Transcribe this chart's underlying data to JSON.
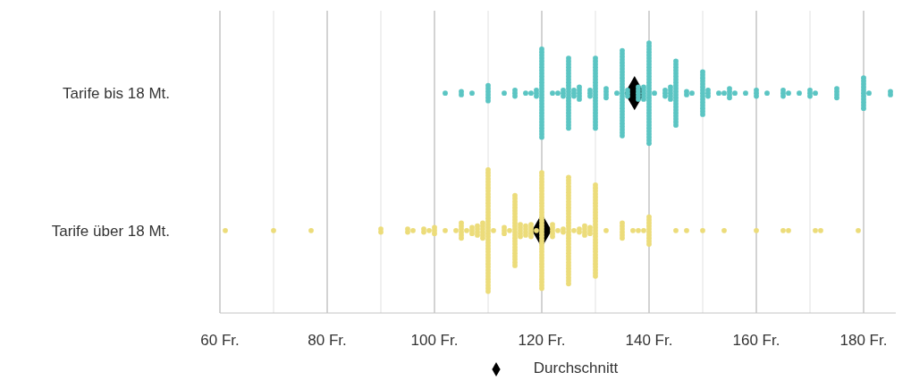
{
  "chart_data": {
    "type": "scatter",
    "orientation": "horizontal",
    "categories": [
      "Tarife bis 18 Mt.",
      "Tarife über 18 Mt."
    ],
    "xlim": [
      60,
      186
    ],
    "xticks": [
      {
        "value": 60,
        "label": "60 Fr."
      },
      {
        "value": 70,
        "label": null
      },
      {
        "value": 80,
        "label": "80 Fr."
      },
      {
        "value": 90,
        "label": null
      },
      {
        "value": 100,
        "label": "100 Fr."
      },
      {
        "value": 110,
        "label": null
      },
      {
        "value": 120,
        "label": "120 Fr."
      },
      {
        "value": 130,
        "label": null
      },
      {
        "value": 140,
        "label": "140 Fr."
      },
      {
        "value": 150,
        "label": null
      },
      {
        "value": 160,
        "label": "160 Fr."
      },
      {
        "value": 170,
        "label": null
      },
      {
        "value": 180,
        "label": "180 Fr."
      }
    ],
    "grid": "x",
    "legend": "bottom",
    "series": [
      {
        "color": "#5bc5c3",
        "marker": "circle",
        "x": [
          "Tarife bis 18 Mt.",
          "Tarife bis 18 Mt.",
          "Tarife bis 18 Mt.",
          "Tarife bis 18 Mt.",
          "Tarife bis 18 Mt.",
          "Tarife bis 18 Mt.",
          "Tarife bis 18 Mt.",
          "Tarife bis 18 Mt.",
          "Tarife bis 18 Mt.",
          "Tarife bis 18 Mt.",
          "Tarife bis 18 Mt.",
          "Tarife bis 18 Mt.",
          "Tarife bis 18 Mt.",
          "Tarife bis 18 Mt.",
          "Tarife bis 18 Mt.",
          "Tarife bis 18 Mt.",
          "Tarife bis 18 Mt.",
          "Tarife bis 18 Mt.",
          "Tarife bis 18 Mt.",
          "Tarife bis 18 Mt.",
          "Tarife bis 18 Mt.",
          "Tarife bis 18 Mt.",
          "Tarife bis 18 Mt.",
          "Tarife bis 18 Mt.",
          "Tarife bis 18 Mt.",
          "Tarife bis 18 Mt.",
          "Tarife bis 18 Mt.",
          "Tarife bis 18 Mt.",
          "Tarife bis 18 Mt.",
          "Tarife bis 18 Mt.",
          "Tarife bis 18 Mt.",
          "Tarife bis 18 Mt.",
          "Tarife bis 18 Mt.",
          "Tarife bis 18 Mt.",
          "Tarife bis 18 Mt.",
          "Tarife bis 18 Mt.",
          "Tarife bis 18 Mt.",
          "Tarife bis 18 Mt.",
          "Tarife bis 18 Mt.",
          "Tarife bis 18 Mt.",
          "Tarife bis 18 Mt.",
          "Tarife bis 18 Mt.",
          "Tarife bis 18 Mt.",
          "Tarife bis 18 Mt.",
          "Tarife bis 18 Mt.",
          "Tarife bis 18 Mt.",
          "Tarife bis 18 Mt.",
          "Tarife bis 18 Mt.",
          "Tarife bis 18 Mt.",
          "Tarife bis 18 Mt.",
          "Tarife bis 18 Mt.",
          "Tarife bis 18 Mt.",
          "Tarife bis 18 Mt.",
          "Tarife bis 18 Mt.",
          "Tarife bis 18 Mt.",
          "Tarife bis 18 Mt.",
          "Tarife bis 18 Mt.",
          "Tarife bis 18 Mt.",
          "Tarife bis 18 Mt.",
          "Tarife bis 18 Mt.",
          "Tarife bis 18 Mt.",
          "Tarife bis 18 Mt.",
          "Tarife bis 18 Mt.",
          "Tarife bis 18 Mt.",
          "Tarife bis 18 Mt.",
          "Tarife bis 18 Mt.",
          "Tarife bis 18 Mt.",
          "Tarife bis 18 Mt.",
          "Tarife bis 18 Mt.",
          "Tarife bis 18 Mt.",
          "Tarife bis 18 Mt.",
          "Tarife bis 18 Mt.",
          "Tarife bis 18 Mt.",
          "Tarife bis 18 Mt.",
          "Tarife bis 18 Mt.",
          "Tarife bis 18 Mt.",
          "Tarife bis 18 Mt.",
          "Tarife bis 18 Mt.",
          "Tarife bis 18 Mt.",
          "Tarife bis 18 Mt.",
          "Tarife bis 18 Mt.",
          "Tarife bis 18 Mt.",
          "Tarife bis 18 Mt.",
          "Tarife bis 18 Mt.",
          "Tarife bis 18 Mt.",
          "Tarife bis 18 Mt.",
          "Tarife bis 18 Mt.",
          "Tarife bis 18 Mt.",
          "Tarife bis 18 Mt.",
          "Tarife bis 18 Mt.",
          "Tarife bis 18 Mt.",
          "Tarife bis 18 Mt.",
          "Tarife bis 18 Mt.",
          "Tarife bis 18 Mt.",
          "Tarife bis 18 Mt.",
          "Tarife bis 18 Mt.",
          "Tarife bis 18 Mt.",
          "Tarife bis 18 Mt.",
          "Tarife bis 18 Mt.",
          "Tarife bis 18 Mt.",
          "Tarife bis 18 Mt.",
          "Tarife bis 18 Mt.",
          "Tarife bis 18 Mt.",
          "Tarife bis 18 Mt.",
          "Tarife bis 18 Mt.",
          "Tarife bis 18 Mt.",
          "Tarife bis 18 Mt.",
          "Tarife bis 18 Mt.",
          "Tarife bis 18 Mt.",
          "Tarife bis 18 Mt.",
          "Tarife bis 18 Mt.",
          "Tarife bis 18 Mt.",
          "Tarife bis 18 Mt.",
          "Tarife bis 18 Mt.",
          "Tarife bis 18 Mt.",
          "Tarife bis 18 Mt.",
          "Tarife bis 18 Mt.",
          "Tarife bis 18 Mt.",
          "Tarife bis 18 Mt.",
          "Tarife bis 18 Mt.",
          "Tarife bis 18 Mt.",
          "Tarife bis 18 Mt.",
          "Tarife bis 18 Mt.",
          "Tarife bis 18 Mt.",
          "Tarife bis 18 Mt.",
          "Tarife bis 18 Mt.",
          "Tarife bis 18 Mt.",
          "Tarife bis 18 Mt.",
          "Tarife bis 18 Mt.",
          "Tarife bis 18 Mt.",
          "Tarife bis 18 Mt.",
          "Tarife bis 18 Mt.",
          "Tarife bis 18 Mt.",
          "Tarife bis 18 Mt.",
          "Tarife bis 18 Mt.",
          "Tarife bis 18 Mt.",
          "Tarife bis 18 Mt.",
          "Tarife bis 18 Mt.",
          "Tarife bis 18 Mt.",
          "Tarife bis 18 Mt.",
          "Tarife bis 18 Mt.",
          "Tarife bis 18 Mt.",
          "Tarife bis 18 Mt.",
          "Tarife bis 18 Mt.",
          "Tarife bis 18 Mt.",
          "Tarife bis 18 Mt.",
          "Tarife bis 18 Mt.",
          "Tarife bis 18 Mt.",
          "Tarife bis 18 Mt.",
          "Tarife bis 18 Mt.",
          "Tarife bis 18 Mt.",
          "Tarife bis 18 Mt.",
          "Tarife bis 18 Mt.",
          "Tarife bis 18 Mt.",
          "Tarife bis 18 Mt.",
          "Tarife bis 18 Mt.",
          "Tarife bis 18 Mt.",
          "Tarife bis 18 Mt.",
          "Tarife bis 18 Mt.",
          "Tarife bis 18 Mt.",
          "Tarife bis 18 Mt.",
          "Tarife bis 18 Mt.",
          "Tarife bis 18 Mt.",
          "Tarife bis 18 Mt.",
          "Tarife bis 18 Mt.",
          "Tarife bis 18 Mt.",
          "Tarife bis 18 Mt.",
          "Tarife bis 18 Mt.",
          "Tarife bis 18 Mt.",
          "Tarife bis 18 Mt.",
          "Tarife bis 18 Mt.",
          "Tarife bis 18 Mt.",
          "Tarife bis 18 Mt.",
          "Tarife bis 18 Mt.",
          "Tarife bis 18 Mt.",
          "Tarife bis 18 Mt.",
          "Tarife bis 18 Mt.",
          "Tarife bis 18 Mt.",
          "Tarife bis 18 Mt.",
          "Tarife bis 18 Mt.",
          "Tarife bis 18 Mt.",
          "Tarife bis 18 Mt.",
          "Tarife bis 18 Mt.",
          "Tarife bis 18 Mt.",
          "Tarife bis 18 Mt.",
          "Tarife bis 18 Mt.",
          "Tarife bis 18 Mt.",
          "Tarife bis 18 Mt.",
          "Tarife bis 18 Mt.",
          "Tarife bis 18 Mt.",
          "Tarife bis 18 Mt.",
          "Tarife bis 18 Mt.",
          "Tarife bis 18 Mt.",
          "Tarife bis 18 Mt.",
          "Tarife bis 18 Mt.",
          "Tarife bis 18 Mt.",
          "Tarife bis 18 Mt.",
          "Tarife bis 18 Mt.",
          "Tarife bis 18 Mt.",
          "Tarife bis 18 Mt.",
          "Tarife bis 18 Mt.",
          "Tarife bis 18 Mt.",
          "Tarife bis 18 Mt.",
          "Tarife bis 18 Mt.",
          "Tarife bis 18 Mt.",
          "Tarife bis 18 Mt.",
          "Tarife bis 18 Mt.",
          "Tarife bis 18 Mt.",
          "Tarife bis 18 Mt.",
          "Tarife bis 18 Mt.",
          "Tarife bis 18 Mt.",
          "Tarife bis 18 Mt.",
          "Tarife bis 18 Mt.",
          "Tarife bis 18 Mt.",
          "Tarife bis 18 Mt.",
          "Tarife bis 18 Mt.",
          "Tarife bis 18 Mt.",
          "Tarife bis 18 Mt.",
          "Tarife bis 18 Mt.",
          "Tarife bis 18 Mt.",
          "Tarife bis 18 Mt.",
          "Tarife bis 18 Mt.",
          "Tarife bis 18 Mt.",
          "Tarife bis 18 Mt.",
          "Tarife bis 18 Mt.",
          "Tarife bis 18 Mt.",
          "Tarife bis 18 Mt.",
          "Tarife bis 18 Mt.",
          "Tarife bis 18 Mt.",
          "Tarife bis 18 Mt.",
          "Tarife bis 18 Mt.",
          "Tarife bis 18 Mt.",
          "Tarife bis 18 Mt.",
          "Tarife bis 18 Mt.",
          "Tarife bis 18 Mt.",
          "Tarife bis 18 Mt.",
          "Tarife bis 18 Mt.",
          "Tarife bis 18 Mt.",
          "Tarife bis 18 Mt.",
          "Tarife bis 18 Mt.",
          "Tarife bis 18 Mt.",
          "Tarife bis 18 Mt.",
          "Tarife bis 18 Mt.",
          "Tarife bis 18 Mt.",
          "Tarife bis 18 Mt.",
          "Tarife bis 18 Mt.",
          "Tarife bis 18 Mt.",
          "Tarife bis 18 Mt.",
          "Tarife bis 18 Mt.",
          "Tarife bis 18 Mt.",
          "Tarife bis 18 Mt.",
          "Tarife bis 18 Mt.",
          "Tarife bis 18 Mt.",
          "Tarife bis 18 Mt.",
          "Tarife bis 18 Mt.",
          "Tarife bis 18 Mt.",
          "Tarife bis 18 Mt.",
          "Tarife bis 18 Mt.",
          "Tarife bis 18 Mt.",
          "Tarife bis 18 Mt.",
          "Tarife bis 18 Mt.",
          "Tarife bis 18 Mt.",
          "Tarife bis 18 Mt.",
          "Tarife bis 18 Mt.",
          "Tarife bis 18 Mt.",
          "Tarife bis 18 Mt.",
          "Tarife bis 18 Mt.",
          "Tarife bis 18 Mt.",
          "Tarife bis 18 Mt.",
          "Tarife bis 18 Mt.",
          "Tarife bis 18 Mt.",
          "Tarife bis 18 Mt.",
          "Tarife bis 18 Mt.",
          "Tarife bis 18 Mt.",
          "Tarife bis 18 Mt.",
          "Tarife bis 18 Mt.",
          "Tarife bis 18 Mt.",
          "Tarife bis 18 Mt.",
          "Tarife bis 18 Mt.",
          "Tarife bis 18 Mt.",
          "Tarife bis 18 Mt.",
          "Tarife bis 18 Mt.",
          "Tarife bis 18 Mt.",
          "Tarife bis 18 Mt.",
          "Tarife bis 18 Mt."
        ],
        "values": [
          102,
          105,
          105,
          107,
          110,
          110,
          110,
          110,
          110,
          110,
          113,
          115,
          115,
          115,
          117,
          118,
          119,
          119,
          119,
          120,
          120,
          120,
          120,
          120,
          120,
          120,
          120,
          120,
          120,
          120,
          120,
          120,
          120,
          120,
          120,
          120,
          120,
          120,
          120,
          120,
          120,
          120,
          120,
          120,
          120,
          120,
          120,
          120,
          120,
          122,
          123,
          124,
          124,
          124,
          125,
          125,
          125,
          125,
          125,
          125,
          125,
          125,
          125,
          125,
          125,
          125,
          125,
          125,
          125,
          125,
          125,
          125,
          125,
          125,
          125,
          125,
          125,
          125,
          126,
          126,
          126,
          127,
          127,
          127,
          127,
          127,
          129,
          129,
          129,
          130,
          130,
          130,
          130,
          130,
          130,
          130,
          130,
          130,
          130,
          130,
          130,
          130,
          130,
          130,
          130,
          130,
          130,
          130,
          130,
          130,
          130,
          130,
          130,
          132,
          132,
          132,
          132,
          134,
          135,
          135,
          135,
          135,
          135,
          135,
          135,
          135,
          135,
          135,
          135,
          135,
          135,
          135,
          135,
          135,
          135,
          135,
          135,
          135,
          135,
          135,
          135,
          135,
          135,
          135,
          135,
          135,
          135,
          136,
          136,
          136,
          138,
          138,
          138,
          138,
          138,
          139,
          139,
          139,
          139,
          139,
          140,
          140,
          140,
          140,
          140,
          140,
          140,
          140,
          140,
          140,
          140,
          140,
          140,
          140,
          140,
          140,
          140,
          140,
          140,
          140,
          140,
          140,
          140,
          140,
          140,
          140,
          140,
          140,
          140,
          140,
          140,
          140,
          140,
          140,
          141,
          143,
          143,
          143,
          144,
          144,
          144,
          144,
          144,
          145,
          145,
          145,
          145,
          145,
          145,
          145,
          145,
          145,
          145,
          145,
          145,
          145,
          145,
          145,
          145,
          145,
          145,
          145,
          145,
          145,
          145,
          147,
          147,
          148,
          150,
          150,
          150,
          150,
          150,
          150,
          150,
          150,
          150,
          150,
          150,
          150,
          150,
          150,
          150,
          151,
          151,
          151,
          153,
          154,
          155,
          155,
          155,
          155,
          156,
          158,
          160,
          160,
          160,
          162,
          165,
          165,
          165,
          166,
          168,
          170,
          170,
          170,
          171,
          175,
          175,
          175,
          175,
          180,
          180,
          180,
          180,
          180,
          180,
          180,
          180,
          180,
          180,
          180,
          181,
          185,
          185
        ]
      },
      {
        "color": "#ecdc7a",
        "marker": "circle",
        "x": [
          "Tarife über 18 Mt.",
          "Tarife über 18 Mt.",
          "Tarife über 18 Mt.",
          "Tarife über 18 Mt.",
          "Tarife über 18 Mt.",
          "Tarife über 18 Mt.",
          "Tarife über 18 Mt.",
          "Tarife über 18 Mt.",
          "Tarife über 18 Mt.",
          "Tarife über 18 Mt.",
          "Tarife über 18 Mt.",
          "Tarife über 18 Mt.",
          "Tarife über 18 Mt.",
          "Tarife über 18 Mt.",
          "Tarife über 18 Mt.",
          "Tarife über 18 Mt.",
          "Tarife über 18 Mt.",
          "Tarife über 18 Mt.",
          "Tarife über 18 Mt.",
          "Tarife über 18 Mt.",
          "Tarife über 18 Mt.",
          "Tarife über 18 Mt.",
          "Tarife über 18 Mt.",
          "Tarife über 18 Mt.",
          "Tarife über 18 Mt.",
          "Tarife über 18 Mt.",
          "Tarife über 18 Mt.",
          "Tarife über 18 Mt.",
          "Tarife über 18 Mt.",
          "Tarife über 18 Mt.",
          "Tarife über 18 Mt.",
          "Tarife über 18 Mt.",
          "Tarife über 18 Mt.",
          "Tarife über 18 Mt.",
          "Tarife über 18 Mt.",
          "Tarife über 18 Mt.",
          "Tarife über 18 Mt.",
          "Tarife über 18 Mt.",
          "Tarife über 18 Mt.",
          "Tarife über 18 Mt.",
          "Tarife über 18 Mt.",
          "Tarife über 18 Mt.",
          "Tarife über 18 Mt.",
          "Tarife über 18 Mt.",
          "Tarife über 18 Mt.",
          "Tarife über 18 Mt.",
          "Tarife über 18 Mt.",
          "Tarife über 18 Mt.",
          "Tarife über 18 Mt.",
          "Tarife über 18 Mt.",
          "Tarife über 18 Mt.",
          "Tarife über 18 Mt.",
          "Tarife über 18 Mt.",
          "Tarife über 18 Mt.",
          "Tarife über 18 Mt.",
          "Tarife über 18 Mt.",
          "Tarife über 18 Mt.",
          "Tarife über 18 Mt.",
          "Tarife über 18 Mt.",
          "Tarife über 18 Mt.",
          "Tarife über 18 Mt.",
          "Tarife über 18 Mt.",
          "Tarife über 18 Mt.",
          "Tarife über 18 Mt.",
          "Tarife über 18 Mt.",
          "Tarife über 18 Mt.",
          "Tarife über 18 Mt.",
          "Tarife über 18 Mt.",
          "Tarife über 18 Mt.",
          "Tarife über 18 Mt.",
          "Tarife über 18 Mt.",
          "Tarife über 18 Mt.",
          "Tarife über 18 Mt.",
          "Tarife über 18 Mt.",
          "Tarife über 18 Mt.",
          "Tarife über 18 Mt.",
          "Tarife über 18 Mt.",
          "Tarife über 18 Mt.",
          "Tarife über 18 Mt.",
          "Tarife über 18 Mt.",
          "Tarife über 18 Mt.",
          "Tarife über 18 Mt.",
          "Tarife über 18 Mt.",
          "Tarife über 18 Mt.",
          "Tarife über 18 Mt.",
          "Tarife über 18 Mt.",
          "Tarife über 18 Mt.",
          "Tarife über 18 Mt.",
          "Tarife über 18 Mt.",
          "Tarife über 18 Mt.",
          "Tarife über 18 Mt.",
          "Tarife über 18 Mt.",
          "Tarife über 18 Mt.",
          "Tarife über 18 Mt.",
          "Tarife über 18 Mt.",
          "Tarife über 18 Mt.",
          "Tarife über 18 Mt.",
          "Tarife über 18 Mt.",
          "Tarife über 18 Mt.",
          "Tarife über 18 Mt.",
          "Tarife über 18 Mt.",
          "Tarife über 18 Mt.",
          "Tarife über 18 Mt.",
          "Tarife über 18 Mt.",
          "Tarife über 18 Mt.",
          "Tarife über 18 Mt.",
          "Tarife über 18 Mt.",
          "Tarife über 18 Mt.",
          "Tarife über 18 Mt.",
          "Tarife über 18 Mt.",
          "Tarife über 18 Mt.",
          "Tarife über 18 Mt.",
          "Tarife über 18 Mt.",
          "Tarife über 18 Mt.",
          "Tarife über 18 Mt.",
          "Tarife über 18 Mt.",
          "Tarife über 18 Mt.",
          "Tarife über 18 Mt.",
          "Tarife über 18 Mt.",
          "Tarife über 18 Mt.",
          "Tarife über 18 Mt.",
          "Tarife über 18 Mt.",
          "Tarife über 18 Mt.",
          "Tarife über 18 Mt.",
          "Tarife über 18 Mt.",
          "Tarife über 18 Mt.",
          "Tarife über 18 Mt.",
          "Tarife über 18 Mt.",
          "Tarife über 18 Mt.",
          "Tarife über 18 Mt.",
          "Tarife über 18 Mt.",
          "Tarife über 18 Mt.",
          "Tarife über 18 Mt.",
          "Tarife über 18 Mt.",
          "Tarife über 18 Mt.",
          "Tarife über 18 Mt.",
          "Tarife über 18 Mt.",
          "Tarife über 18 Mt.",
          "Tarife über 18 Mt.",
          "Tarife über 18 Mt.",
          "Tarife über 18 Mt.",
          "Tarife über 18 Mt.",
          "Tarife über 18 Mt.",
          "Tarife über 18 Mt.",
          "Tarife über 18 Mt.",
          "Tarife über 18 Mt.",
          "Tarife über 18 Mt.",
          "Tarife über 18 Mt.",
          "Tarife über 18 Mt.",
          "Tarife über 18 Mt.",
          "Tarife über 18 Mt.",
          "Tarife über 18 Mt.",
          "Tarife über 18 Mt.",
          "Tarife über 18 Mt.",
          "Tarife über 18 Mt.",
          "Tarife über 18 Mt.",
          "Tarife über 18 Mt.",
          "Tarife über 18 Mt.",
          "Tarife über 18 Mt.",
          "Tarife über 18 Mt.",
          "Tarife über 18 Mt.",
          "Tarife über 18 Mt.",
          "Tarife über 18 Mt.",
          "Tarife über 18 Mt.",
          "Tarife über 18 Mt.",
          "Tarife über 18 Mt.",
          "Tarife über 18 Mt.",
          "Tarife über 18 Mt.",
          "Tarife über 18 Mt.",
          "Tarife über 18 Mt.",
          "Tarife über 18 Mt.",
          "Tarife über 18 Mt.",
          "Tarife über 18 Mt.",
          "Tarife über 18 Mt.",
          "Tarife über 18 Mt.",
          "Tarife über 18 Mt.",
          "Tarife über 18 Mt.",
          "Tarife über 18 Mt.",
          "Tarife über 18 Mt.",
          "Tarife über 18 Mt.",
          "Tarife über 18 Mt.",
          "Tarife über 18 Mt.",
          "Tarife über 18 Mt.",
          "Tarife über 18 Mt.",
          "Tarife über 18 Mt.",
          "Tarife über 18 Mt.",
          "Tarife über 18 Mt.",
          "Tarife über 18 Mt.",
          "Tarife über 18 Mt.",
          "Tarife über 18 Mt.",
          "Tarife über 18 Mt.",
          "Tarife über 18 Mt.",
          "Tarife über 18 Mt.",
          "Tarife über 18 Mt.",
          "Tarife über 18 Mt.",
          "Tarife über 18 Mt.",
          "Tarife über 18 Mt.",
          "Tarife über 18 Mt.",
          "Tarife über 18 Mt.",
          "Tarife über 18 Mt.",
          "Tarife über 18 Mt.",
          "Tarife über 18 Mt.",
          "Tarife über 18 Mt.",
          "Tarife über 18 Mt.",
          "Tarife über 18 Mt.",
          "Tarife über 18 Mt.",
          "Tarife über 18 Mt.",
          "Tarife über 18 Mt.",
          "Tarife über 18 Mt.",
          "Tarife über 18 Mt.",
          "Tarife über 18 Mt.",
          "Tarife über 18 Mt.",
          "Tarife über 18 Mt.",
          "Tarife über 18 Mt.",
          "Tarife über 18 Mt.",
          "Tarife über 18 Mt.",
          "Tarife über 18 Mt.",
          "Tarife über 18 Mt.",
          "Tarife über 18 Mt.",
          "Tarife über 18 Mt.",
          "Tarife über 18 Mt.",
          "Tarife über 18 Mt.",
          "Tarife über 18 Mt.",
          "Tarife über 18 Mt.",
          "Tarife über 18 Mt.",
          "Tarife über 18 Mt.",
          "Tarife über 18 Mt.",
          "Tarife über 18 Mt.",
          "Tarife über 18 Mt.",
          "Tarife über 18 Mt.",
          "Tarife über 18 Mt.",
          "Tarife über 18 Mt.",
          "Tarife über 18 Mt.",
          "Tarife über 18 Mt.",
          "Tarife über 18 Mt.",
          "Tarife über 18 Mt.",
          "Tarife über 18 Mt.",
          "Tarife über 18 Mt.",
          "Tarife über 18 Mt.",
          "Tarife über 18 Mt.",
          "Tarife über 18 Mt.",
          "Tarife über 18 Mt.",
          "Tarife über 18 Mt.",
          "Tarife über 18 Mt.",
          "Tarife über 18 Mt.",
          "Tarife über 18 Mt.",
          "Tarife über 18 Mt.",
          "Tarife über 18 Mt.",
          "Tarife über 18 Mt.",
          "Tarife über 18 Mt.",
          "Tarife über 18 Mt.",
          "Tarife über 18 Mt.",
          "Tarife über 18 Mt.",
          "Tarife über 18 Mt.",
          "Tarife über 18 Mt.",
          "Tarife über 18 Mt.",
          "Tarife über 18 Mt.",
          "Tarife über 18 Mt.",
          "Tarife über 18 Mt.",
          "Tarife über 18 Mt.",
          "Tarife über 18 Mt.",
          "Tarife über 18 Mt.",
          "Tarife über 18 Mt.",
          "Tarife über 18 Mt.",
          "Tarife über 18 Mt.",
          "Tarife über 18 Mt.",
          "Tarife über 18 Mt.",
          "Tarife über 18 Mt.",
          "Tarife über 18 Mt.",
          "Tarife über 18 Mt.",
          "Tarife über 18 Mt.",
          "Tarife über 18 Mt.",
          "Tarife über 18 Mt.",
          "Tarife über 18 Mt.",
          "Tarife über 18 Mt."
        ],
        "values": [
          61,
          70,
          77,
          90,
          90,
          95,
          95,
          96,
          98,
          98,
          99,
          100,
          100,
          100,
          102,
          104,
          105,
          105,
          105,
          105,
          105,
          105,
          106,
          107,
          107,
          107,
          108,
          108,
          108,
          108,
          109,
          109,
          109,
          109,
          109,
          109,
          110,
          110,
          110,
          110,
          110,
          110,
          110,
          110,
          110,
          110,
          110,
          110,
          110,
          110,
          110,
          110,
          110,
          110,
          110,
          110,
          110,
          110,
          110,
          110,
          110,
          110,
          110,
          110,
          110,
          110,
          110,
          110,
          110,
          110,
          110,
          110,
          110,
          110,
          110,
          110,
          110,
          111,
          113,
          113,
          113,
          114,
          115,
          115,
          115,
          115,
          115,
          115,
          115,
          115,
          115,
          115,
          115,
          115,
          115,
          115,
          115,
          115,
          115,
          115,
          115,
          115,
          115,
          115,
          115,
          115,
          116,
          116,
          116,
          116,
          116,
          117,
          117,
          117,
          117,
          118,
          118,
          118,
          118,
          118,
          119,
          120,
          120,
          120,
          120,
          120,
          120,
          120,
          120,
          120,
          120,
          120,
          120,
          120,
          120,
          120,
          120,
          120,
          120,
          120,
          120,
          120,
          120,
          120,
          120,
          120,
          120,
          120,
          120,
          120,
          120,
          120,
          120,
          120,
          120,
          120,
          120,
          120,
          120,
          120,
          122,
          122,
          122,
          122,
          122,
          123,
          124,
          124,
          125,
          125,
          125,
          125,
          125,
          125,
          125,
          125,
          125,
          125,
          125,
          125,
          125,
          125,
          125,
          125,
          125,
          125,
          125,
          125,
          125,
          125,
          125,
          125,
          125,
          125,
          125,
          125,
          125,
          125,
          125,
          125,
          125,
          125,
          125,
          125,
          126,
          127,
          127,
          128,
          128,
          128,
          128,
          129,
          129,
          129,
          130,
          130,
          130,
          130,
          130,
          130,
          130,
          130,
          130,
          130,
          130,
          130,
          130,
          130,
          130,
          130,
          130,
          130,
          130,
          130,
          130,
          130,
          130,
          130,
          130,
          130,
          130,
          130,
          130,
          130,
          130,
          132,
          135,
          135,
          135,
          135,
          135,
          135,
          137,
          138,
          139,
          140,
          140,
          140,
          140,
          140,
          140,
          140,
          140,
          140,
          140,
          145,
          147,
          150,
          154,
          160,
          165,
          166,
          171,
          172,
          179
        ]
      },
      {
        "name": "Durchschnitt",
        "color": "#000000",
        "marker": "diamond",
        "values": [
          137.3,
          120
        ]
      }
    ]
  }
}
